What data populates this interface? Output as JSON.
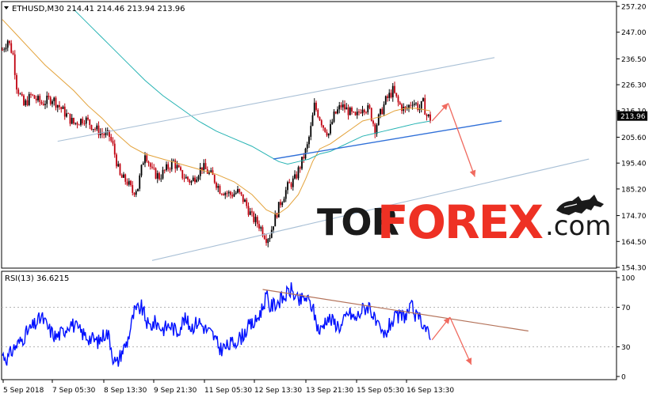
{
  "header": {
    "symbol": "ETHUSD,M30",
    "ohlc": "214.41 214.46 213.94 213.96"
  },
  "rsi_header": "RSI(13) 36.6215",
  "logo": {
    "part1": "TOR",
    "part2": "FOREX",
    "part3": ".com"
  },
  "colors": {
    "candle_up": "#000000",
    "candle_down": "#c0000e",
    "ma_fast": "#e3a23a",
    "ma_slow": "#26b3b3",
    "channel": "#a9c0d6",
    "support": "#2f6fd8",
    "arrow": "#f06a5f",
    "rsi_line": "#0010ff",
    "rsi_trend": "#b4735a",
    "price_tag": "#000000",
    "logo_dark": "#1a1a1a",
    "logo_red": "#ee3124"
  },
  "chart_data": [
    {
      "type": "candlestick",
      "ylim": [
        154.3,
        257.2
      ],
      "y_ticks": [
        "257.20",
        "247.00",
        "236.50",
        "226.30",
        "216.10",
        "205.60",
        "195.40",
        "185.20",
        "174.70",
        "164.50",
        "154.30"
      ],
      "last_price_label": "213.96",
      "x_ticks": [
        "5 Sep 2018",
        "7 Sep 05:30",
        "8 Sep 13:30",
        "9 Sep 21:30",
        "11 Sep 05:30",
        "12 Sep 13:30",
        "13 Sep 21:30",
        "15 Sep 05:30",
        "16 Sep 13:30"
      ],
      "close_path": [
        [
          0,
          240
        ],
        [
          3,
          244
        ],
        [
          6,
          238
        ],
        [
          8,
          226
        ],
        [
          12,
          218
        ],
        [
          16,
          222
        ],
        [
          22,
          219
        ],
        [
          28,
          221
        ],
        [
          34,
          216
        ],
        [
          40,
          211
        ],
        [
          46,
          213
        ],
        [
          52,
          209
        ],
        [
          56,
          207
        ],
        [
          60,
          206
        ],
        [
          62,
          202
        ],
        [
          66,
          190
        ],
        [
          70,
          188
        ],
        [
          73,
          184
        ],
        [
          76,
          186
        ],
        [
          80,
          200
        ],
        [
          84,
          192
        ],
        [
          88,
          190
        ],
        [
          92,
          193
        ],
        [
          96,
          196
        ],
        [
          100,
          191
        ],
        [
          106,
          188
        ],
        [
          112,
          194
        ],
        [
          118,
          190
        ],
        [
          122,
          185
        ],
        [
          128,
          183
        ],
        [
          132,
          184
        ],
        [
          136,
          180
        ],
        [
          140,
          174
        ],
        [
          144,
          171
        ],
        [
          148,
          166
        ],
        [
          150,
          167
        ],
        [
          152,
          172
        ],
        [
          156,
          180
        ],
        [
          160,
          186
        ],
        [
          164,
          189
        ],
        [
          168,
          196
        ],
        [
          171,
          202
        ],
        [
          173,
          209
        ],
        [
          175,
          218
        ],
        [
          177,
          215
        ],
        [
          180,
          210
        ],
        [
          183,
          207
        ],
        [
          186,
          214
        ],
        [
          190,
          218
        ],
        [
          194,
          216
        ],
        [
          198,
          213
        ],
        [
          202,
          218
        ],
        [
          206,
          216
        ],
        [
          209,
          209
        ],
        [
          211,
          213
        ],
        [
          215,
          220
        ],
        [
          219,
          224
        ],
        [
          222,
          219
        ],
        [
          226,
          216
        ],
        [
          230,
          220
        ],
        [
          234,
          217
        ],
        [
          236,
          219
        ],
        [
          238,
          214
        ],
        [
          240,
          213
        ]
      ],
      "series": [
        {
          "name": "",
          "kind": "ma_fast",
          "points": [
            [
              0,
              252
            ],
            [
              8,
              246
            ],
            [
              16,
              240
            ],
            [
              24,
              234
            ],
            [
              32,
              229
            ],
            [
              40,
              224
            ],
            [
              48,
              218
            ],
            [
              56,
              213
            ],
            [
              64,
              207
            ],
            [
              72,
              202
            ],
            [
              80,
              199
            ],
            [
              90,
              197
            ],
            [
              100,
              195
            ],
            [
              110,
              193
            ],
            [
              120,
              191
            ],
            [
              130,
              188
            ],
            [
              140,
              183
            ],
            [
              148,
              177
            ],
            [
              154,
              175
            ],
            [
              160,
              178
            ],
            [
              166,
              183
            ],
            [
              170,
              189
            ],
            [
              174,
              196
            ],
            [
              178,
              201
            ],
            [
              184,
              203
            ],
            [
              190,
              206
            ],
            [
              196,
              209
            ],
            [
              202,
              212
            ],
            [
              208,
              213
            ],
            [
              214,
              214
            ],
            [
              220,
              216
            ],
            [
              226,
              217
            ],
            [
              232,
              217
            ],
            [
              240,
              216
            ]
          ]
        },
        {
          "name": "",
          "kind": "ma_slow",
          "points": [
            [
              40,
              256
            ],
            [
              50,
              249
            ],
            [
              60,
              242
            ],
            [
              70,
              235
            ],
            [
              80,
              228
            ],
            [
              90,
              222
            ],
            [
              100,
              217
            ],
            [
              110,
              212
            ],
            [
              120,
              208
            ],
            [
              130,
              205
            ],
            [
              140,
              202
            ],
            [
              150,
              198
            ],
            [
              155,
              196
            ],
            [
              160,
              195
            ],
            [
              166,
              196
            ],
            [
              172,
              197
            ],
            [
              178,
              199
            ],
            [
              184,
              200
            ],
            [
              190,
              202
            ],
            [
              196,
              204
            ],
            [
              202,
              206
            ],
            [
              208,
              207
            ],
            [
              214,
              208
            ],
            [
              220,
              209
            ],
            [
              226,
              210
            ],
            [
              232,
              211
            ],
            [
              240,
              212
            ]
          ]
        }
      ],
      "trendlines": [
        {
          "kind": "channel",
          "from": [
            31,
            204
          ],
          "to": [
            276,
            237
          ]
        },
        {
          "kind": "channel",
          "from": [
            84,
            157
          ],
          "to": [
            329,
            197
          ]
        },
        {
          "kind": "support",
          "from": [
            152,
            197
          ],
          "to": [
            280,
            212
          ]
        }
      ],
      "forecast_arrows": [
        {
          "from": [
            241,
            212
          ],
          "to": [
            250,
            219
          ]
        },
        {
          "from": [
            250,
            219
          ],
          "to": [
            265,
            190
          ]
        }
      ]
    },
    {
      "type": "line",
      "name": "RSI(13)",
      "ylim": [
        0,
        100
      ],
      "y_ticks": [
        "100",
        "70",
        "30",
        "0"
      ],
      "levels": [
        70,
        30
      ],
      "path": [
        [
          0,
          22
        ],
        [
          3,
          18
        ],
        [
          6,
          28
        ],
        [
          10,
          35
        ],
        [
          14,
          45
        ],
        [
          18,
          52
        ],
        [
          22,
          60
        ],
        [
          26,
          48
        ],
        [
          30,
          40
        ],
        [
          34,
          45
        ],
        [
          38,
          55
        ],
        [
          42,
          48
        ],
        [
          46,
          42
        ],
        [
          50,
          38
        ],
        [
          54,
          35
        ],
        [
          58,
          45
        ],
        [
          60,
          40
        ],
        [
          62,
          20
        ],
        [
          64,
          12
        ],
        [
          67,
          25
        ],
        [
          70,
          35
        ],
        [
          74,
          65
        ],
        [
          78,
          70
        ],
        [
          82,
          50
        ],
        [
          86,
          55
        ],
        [
          90,
          48
        ],
        [
          94,
          52
        ],
        [
          98,
          45
        ],
        [
          102,
          58
        ],
        [
          106,
          50
        ],
        [
          110,
          56
        ],
        [
          114,
          48
        ],
        [
          118,
          42
        ],
        [
          122,
          28
        ],
        [
          126,
          30
        ],
        [
          130,
          35
        ],
        [
          134,
          40
        ],
        [
          138,
          50
        ],
        [
          142,
          55
        ],
        [
          146,
          70
        ],
        [
          148,
          82
        ],
        [
          150,
          70
        ],
        [
          154,
          75
        ],
        [
          158,
          80
        ],
        [
          162,
          88
        ],
        [
          166,
          75
        ],
        [
          170,
          80
        ],
        [
          174,
          70
        ],
        [
          176,
          55
        ],
        [
          178,
          45
        ],
        [
          182,
          60
        ],
        [
          186,
          55
        ],
        [
          190,
          50
        ],
        [
          194,
          65
        ],
        [
          198,
          58
        ],
        [
          202,
          68
        ],
        [
          206,
          72
        ],
        [
          209,
          55
        ],
        [
          211,
          48
        ],
        [
          214,
          40
        ],
        [
          218,
          55
        ],
        [
          222,
          60
        ],
        [
          226,
          62
        ],
        [
          230,
          70
        ],
        [
          232,
          60
        ],
        [
          236,
          55
        ],
        [
          240,
          37
        ]
      ],
      "trendline": {
        "from": [
          146,
          88
        ],
        "to": [
          295,
          46
        ]
      },
      "forecast_arrows": [
        {
          "from": [
            241,
            37
          ],
          "to": [
            251,
            60
          ]
        },
        {
          "from": [
            251,
            60
          ],
          "to": [
            263,
            12
          ]
        }
      ]
    }
  ]
}
